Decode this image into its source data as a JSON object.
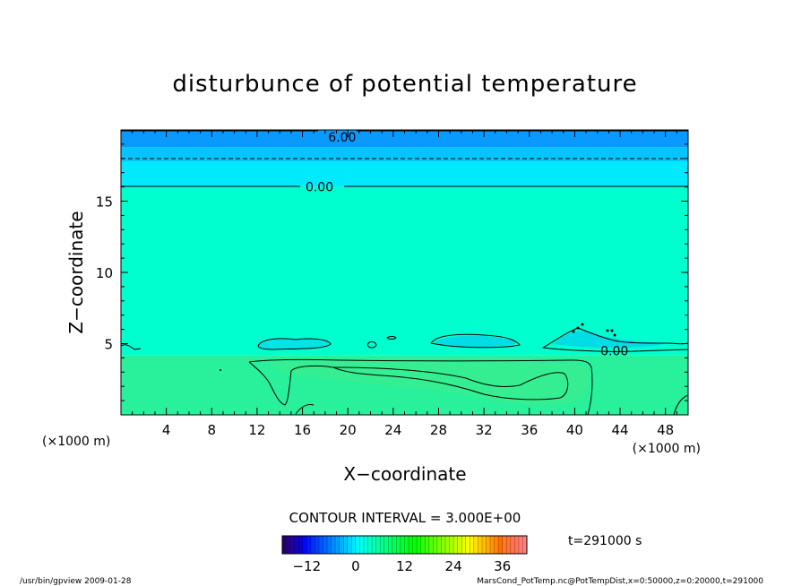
{
  "chart_data": {
    "type": "heatmap",
    "title": "disturbunce of potential temperature",
    "xlabel": "X−coordinate",
    "ylabel": "Z−coordinate",
    "x_unit_left": "(×1000 m)",
    "x_unit_right": "(×1000 m)",
    "xlim": [
      0,
      50
    ],
    "ylim": [
      0,
      20
    ],
    "x_ticks": [
      "4",
      "8",
      "12",
      "16",
      "20",
      "24",
      "28",
      "32",
      "36",
      "40",
      "44",
      "48"
    ],
    "y_ticks": [
      "5",
      "10",
      "15"
    ],
    "contour_interval_text": "CONTOUR INTERVAL = 3.000E+00",
    "contour_labels": [
      {
        "text": "6.00",
        "x": 19.5,
        "z": 19.5
      },
      {
        "text": "0.00",
        "x": 17.5,
        "z": 16.0
      },
      {
        "text": "0.00",
        "x": 43.5,
        "z": 4.5
      }
    ],
    "layers": [
      {
        "z_range": [
          0,
          4.2
        ],
        "value": 1.5,
        "color": "#29f09b"
      },
      {
        "z_range": [
          4.2,
          16.0
        ],
        "value": -1.5,
        "color": "#00ffcf"
      },
      {
        "z_range": [
          16.0,
          17.8
        ],
        "value": -4.5,
        "color": "#01eafd"
      },
      {
        "z_range": [
          17.8,
          18.8
        ],
        "value": -7.5,
        "color": "#05c4ff"
      },
      {
        "z_range": [
          18.8,
          20.0
        ],
        "value": -10.5,
        "color": "#0a9aff"
      }
    ],
    "colorbar": {
      "ticks": [
        "−12",
        "0",
        "12",
        "24",
        "36"
      ],
      "range": [
        -18,
        42
      ]
    },
    "time_label": "t=291000 s"
  },
  "footer": {
    "left": "/usr/bin/gpview   2009-01-28",
    "right": "MarsCond_PotTemp.nc@PotTempDist,x=0:50000,z=0:20000,t=291000"
  }
}
